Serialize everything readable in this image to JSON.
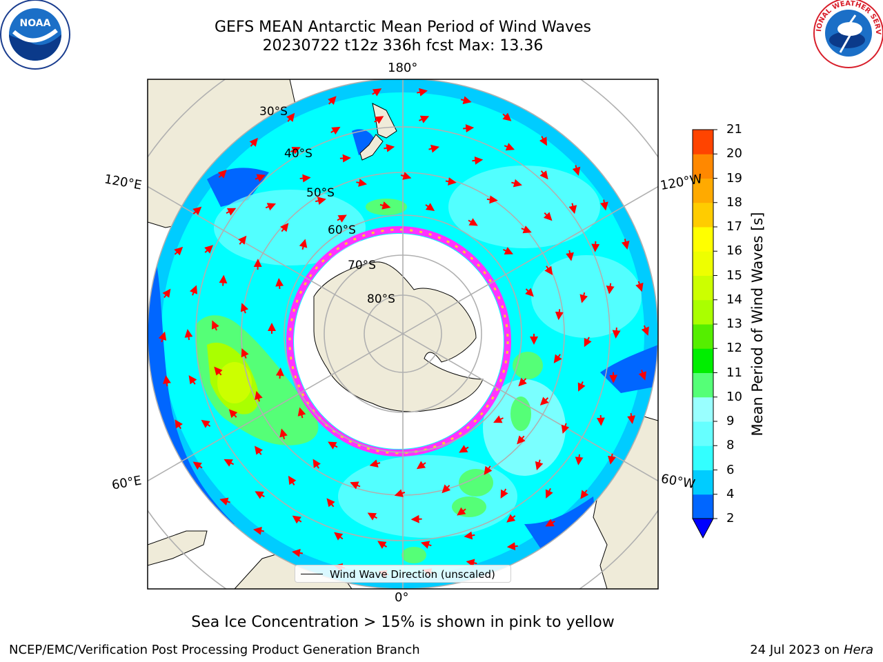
{
  "title": {
    "line1": "GEFS MEAN Antarctic Mean Period of Wind Waves",
    "line2": "20230722 t12z 336h fcst   Max: 13.36"
  },
  "map": {
    "projection": "south-polar-stereographic",
    "meridian_labels": {
      "top": "180°",
      "bottom": "0°",
      "upper_left": "120°E",
      "upper_right": "120°W",
      "lower_left": "60°E",
      "lower_right": "60°W"
    },
    "parallel_labels": [
      "30°S",
      "40°S",
      "50°S",
      "60°S",
      "70°S",
      "80°S"
    ],
    "land_color": "#efebd9",
    "ocean_base_color": "#00ffff",
    "sea_ice_edge_colors": [
      "#ff33ff",
      "#ffcc33"
    ],
    "arrow_color": "#ff0000",
    "grid_color": "#b0b0b0"
  },
  "legend": {
    "label": "Wind Wave Direction (unscaled)"
  },
  "colorbar": {
    "label": "Mean Period of Wind Waves [s]",
    "ticks": [
      "2",
      "4",
      "6",
      "8",
      "9",
      "10",
      "11",
      "12",
      "13",
      "14",
      "15",
      "16",
      "17",
      "18",
      "19",
      "20",
      "21"
    ],
    "colors": [
      "#0066ff",
      "#00ccff",
      "#33ffff",
      "#66ffff",
      "#99ffff",
      "#55ff77",
      "#00ee00",
      "#55ee00",
      "#aaff00",
      "#ccff00",
      "#eeff00",
      "#ffff00",
      "#ffcc00",
      "#ffaa00",
      "#ff8800",
      "#ff4400",
      "#ff0000"
    ],
    "under_color": "#0000ff"
  },
  "note": "Sea Ice Concentration > 15% is shown in pink to yellow",
  "footer": {
    "left": "NCEP/EMC/Verification Post Processing Product Generation Branch",
    "date": "24 Jul 2023 on ",
    "host": "Hera"
  },
  "logos": {
    "noaa_text": "NOAA",
    "nws_text": "NATIONAL WEATHER SERVICE"
  }
}
